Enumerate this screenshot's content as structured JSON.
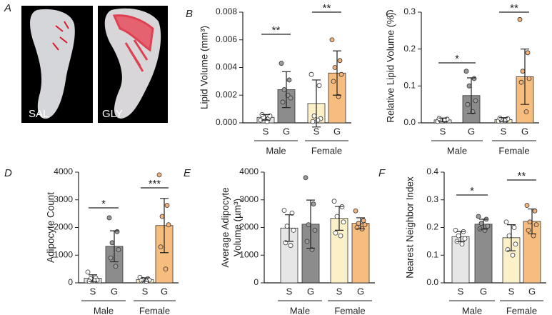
{
  "image_panel": {
    "panel_label": "A",
    "labels": [
      "SAL",
      "GLY"
    ]
  },
  "chart_data": [
    {
      "type": "bar",
      "panel_label": "B",
      "ylabel": [
        "Lipid Volume (mm³)"
      ],
      "ylim": [
        0,
        0.008
      ],
      "yticks": [
        {
          "value": 0,
          "label": "0.000"
        },
        {
          "value": 0.002,
          "label": "0.002"
        },
        {
          "value": 0.004,
          "label": "0.004"
        },
        {
          "value": 0.006,
          "label": "0.006"
        },
        {
          "value": 0.008,
          "label": "0.008"
        }
      ],
      "groups": [
        {
          "name": "Male",
          "categories": [
            "S",
            "G"
          ],
          "colors": [
            "#e6e6e6",
            "#8c8c8c"
          ],
          "point_colors": [
            "#ffffff",
            "#9a9a9a"
          ],
          "values": [
            0.0004,
            0.0024
          ],
          "errors": [
            0.0002,
            0.0013
          ],
          "points": [
            [
              0.0002,
              0.0003,
              0.0004,
              0.0005,
              0.0006,
              0.0001
            ],
            [
              0.0043,
              0.0031,
              0.0024,
              0.0018,
              0.0015,
              0.002
            ]
          ],
          "significance": "**"
        },
        {
          "name": "Female",
          "categories": [
            "S",
            "G"
          ],
          "colors": [
            "#fbf0c8",
            "#f6bd7e"
          ],
          "point_colors": [
            "#ffffff",
            "#f3b27a"
          ],
          "values": [
            0.0014,
            0.0036
          ],
          "errors": [
            0.0017,
            0.0016
          ],
          "points": [
            [
              0.0035,
              0.0027,
              0.0005,
              0.0003,
              0.0001,
              0.0002
            ],
            [
              0.006,
              0.0045,
              0.004,
              0.0035,
              0.003,
              0.0019
            ]
          ],
          "significance": "**"
        }
      ]
    },
    {
      "type": "bar",
      "panel_label": "C",
      "ylabel": [
        "Relative Lipid Volume (%)"
      ],
      "ylim": [
        0,
        0.3
      ],
      "yticks": [
        {
          "value": 0,
          "label": "0.0"
        },
        0.1,
        0.2,
        0.3
      ],
      "groups": [
        {
          "name": "Male",
          "categories": [
            "S",
            "G"
          ],
          "colors": [
            "#e6e6e6",
            "#8c8c8c"
          ],
          "point_colors": [
            "#ffffff",
            "#9a9a9a"
          ],
          "values": [
            0.008,
            0.074
          ],
          "errors": [
            0.005,
            0.048
          ],
          "points": [
            [
              0.004,
              0.006,
              0.008,
              0.01,
              0.012,
              0.007
            ],
            [
              0.14,
              0.12,
              0.1,
              0.06,
              0.05,
              0.03
            ]
          ],
          "significance": "*"
        },
        {
          "name": "Female",
          "categories": [
            "S",
            "G"
          ],
          "colors": [
            "#fbf0c8",
            "#f6bd7e"
          ],
          "point_colors": [
            "#ffffff",
            "#f3b27a"
          ],
          "values": [
            0.009,
            0.125
          ],
          "errors": [
            0.005,
            0.075
          ],
          "points": [
            [
              0.005,
              0.007,
              0.009,
              0.011,
              0.013,
              0.006
            ],
            [
              0.28,
              0.19,
              0.14,
              0.12,
              0.11,
              0.03
            ]
          ],
          "significance": "**"
        }
      ]
    },
    {
      "type": "bar",
      "panel_label": "D",
      "ylabel": [
        "Adipocyte Count"
      ],
      "ylim": [
        0,
        4000
      ],
      "yticks": [
        0,
        1000,
        2000,
        3000,
        4000
      ],
      "groups": [
        {
          "name": "Male",
          "categories": [
            "S",
            "G"
          ],
          "colors": [
            "#e6e6e6",
            "#8c8c8c"
          ],
          "point_colors": [
            "#ffffff",
            "#9a9a9a"
          ],
          "values": [
            170,
            1320
          ],
          "errors": [
            120,
            560
          ],
          "points": [
            [
              390,
              180,
              150,
              100,
              60,
              80
            ],
            [
              2350,
              1850,
              1450,
              1200,
              900,
              600
            ]
          ],
          "significance": "*"
        },
        {
          "name": "Female",
          "categories": [
            "S",
            "G"
          ],
          "colors": [
            "#fbf0c8",
            "#f6bd7e"
          ],
          "point_colors": [
            "#ffffff",
            "#f3b27a"
          ],
          "values": [
            120,
            2070
          ],
          "errors": [
            60,
            980
          ],
          "points": [
            [
              200,
              150,
              120,
              100,
              80,
              60
            ],
            [
              3900,
              2800,
              2400,
              2100,
              1300,
              500
            ]
          ],
          "significance": "***"
        }
      ]
    },
    {
      "type": "bar",
      "panel_label": "E",
      "ylabel": [
        "Average Adipocyte",
        "Volume (µm³)"
      ],
      "ylim": [
        0,
        4000
      ],
      "yticks": [
        0,
        1000,
        2000,
        3000,
        4000
      ],
      "groups": [
        {
          "name": "Male",
          "categories": [
            "S",
            "G"
          ],
          "colors": [
            "#e6e6e6",
            "#8c8c8c"
          ],
          "point_colors": [
            "#ffffff",
            "#9a9a9a"
          ],
          "values": [
            1980,
            2120
          ],
          "errors": [
            480,
            870
          ],
          "points": [
            [
              2620,
              2520,
              2050,
              1900,
              1450,
              1350
            ],
            [
              3800,
              2850,
              2100,
              1900,
              1500,
              1200
            ]
          ]
        },
        {
          "name": "Female",
          "categories": [
            "S",
            "G"
          ],
          "colors": [
            "#fbf0c8",
            "#f6bd7e"
          ],
          "point_colors": [
            "#ffffff",
            "#f3b27a"
          ],
          "values": [
            2330,
            2150
          ],
          "errors": [
            430,
            200
          ],
          "points": [
            [
              2950,
              2750,
              2400,
              2200,
              1800,
              1700
            ],
            [
              2600,
              2250,
              2150,
              2100,
              2000,
              1950
            ]
          ]
        }
      ]
    },
    {
      "type": "bar",
      "panel_label": "F",
      "ylabel": [
        "Nearest Neighbor Index"
      ],
      "ylim": [
        0,
        0.4
      ],
      "yticks": [
        {
          "value": 0,
          "label": "0.0"
        },
        0.1,
        0.2,
        0.3,
        0.4
      ],
      "groups": [
        {
          "name": "Male",
          "categories": [
            "S",
            "G"
          ],
          "colors": [
            "#e6e6e6",
            "#8c8c8c"
          ],
          "point_colors": [
            "#ffffff",
            "#9a9a9a"
          ],
          "values": [
            0.167,
            0.212
          ],
          "errors": [
            0.018,
            0.018
          ],
          "points": [
            [
              0.19,
              0.185,
              0.17,
              0.16,
              0.15,
              0.14
            ],
            [
              0.24,
              0.23,
              0.215,
              0.205,
              0.195,
              0.19
            ]
          ],
          "significance": "*"
        },
        {
          "name": "Female",
          "categories": [
            "S",
            "G"
          ],
          "colors": [
            "#fbf0c8",
            "#f6bd7e"
          ],
          "point_colors": [
            "#ffffff",
            "#f3b27a"
          ],
          "values": [
            0.163,
            0.222
          ],
          "errors": [
            0.047,
            0.045
          ],
          "points": [
            [
              0.22,
              0.2,
              0.17,
              0.14,
              0.12,
              0.1
            ],
            [
              0.28,
              0.26,
              0.22,
              0.21,
              0.19,
              0.17
            ]
          ],
          "significance": "**"
        }
      ]
    }
  ]
}
